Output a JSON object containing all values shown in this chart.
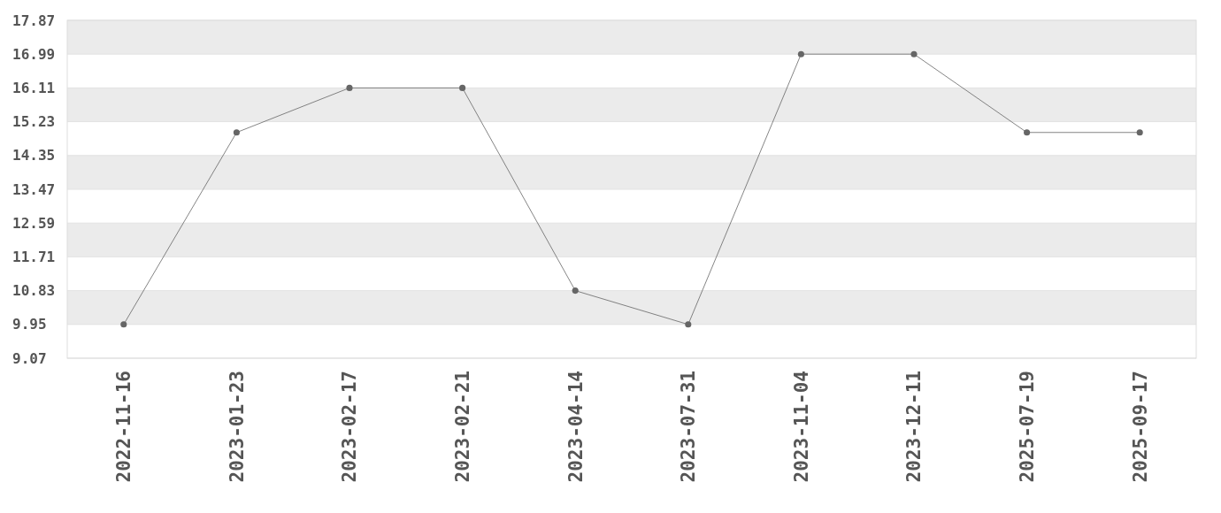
{
  "chart_data": {
    "type": "line",
    "categories": [
      "2022-11-16",
      "2023-01-23",
      "2023-02-17",
      "2023-02-21",
      "2023-04-14",
      "2023-07-31",
      "2023-11-04",
      "2023-12-11",
      "2025-07-19",
      "2025-09-17"
    ],
    "series": [
      {
        "color": "#666666",
        "values": [
          9.95,
          14.95,
          16.11,
          16.11,
          10.83,
          9.95,
          16.99,
          16.99,
          14.95,
          14.95
        ]
      }
    ],
    "ylim": [
      9.07,
      17.87
    ],
    "yticks": [
      9.07,
      9.95,
      10.83,
      11.71,
      12.59,
      13.47,
      14.35,
      15.23,
      16.11,
      16.99,
      17.87
    ],
    "grid": "y",
    "marker": "circle",
    "line_style": "solid"
  }
}
